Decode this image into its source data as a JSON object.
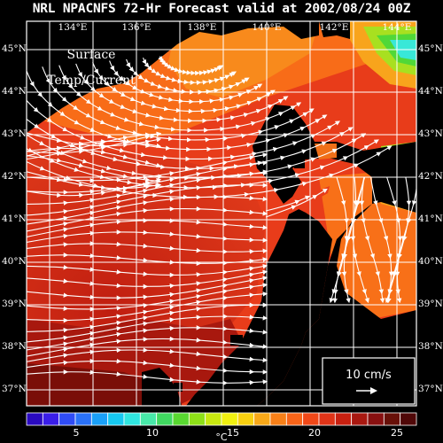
{
  "header": {
    "title": "NRL NPACNFS 72-Hr Forecast valid at 2002/08/24 00Z"
  },
  "layer_label": {
    "line1": "Surface",
    "line2": "Temp/Current"
  },
  "axes": {
    "longitude_labels": [
      "134°E",
      "136°E",
      "138°E",
      "140°E",
      "142°E",
      "144°E"
    ],
    "latitude_labels_left": [
      "45°N",
      "44°N",
      "43°N",
      "42°N",
      "41°N",
      "40°N",
      "39°N",
      "38°N",
      "37°N"
    ],
    "latitude_labels_right": [
      "45°N",
      "44°N",
      "43°N",
      "42°N",
      "41°N",
      "40°N",
      "39°N",
      "38°N",
      "37°N"
    ]
  },
  "scale_box": {
    "label": "10 cm/s",
    "arrow_icon": "arrow-right-icon"
  },
  "colorbar": {
    "tick_labels": [
      "5",
      "10",
      "15",
      "20",
      "25"
    ],
    "unit": "°C",
    "colors": [
      "#2a0ac0",
      "#3a1ee8",
      "#2f4cf5",
      "#2a72f8",
      "#1aa0f8",
      "#16c8f0",
      "#30e6e0",
      "#48e8a8",
      "#40d860",
      "#58d830",
      "#8ee018",
      "#c8e810",
      "#f0f010",
      "#f8d010",
      "#f8a818",
      "#f88018",
      "#f86418",
      "#f04818",
      "#e03418",
      "#c82010",
      "#a81810",
      "#881010",
      "#681008",
      "#500808"
    ]
  },
  "map_colors": {
    "land": "#000000",
    "sea_warm": "#d42c18",
    "sea_red": "#e63a1a",
    "sea_orange": "#f86a18",
    "sea_lightorange": "#f88c1c",
    "sea_darkred": "#8c1208",
    "sea_deepred": "#5a0a06",
    "sea_green": "#50d838",
    "sea_cyan": "#38e8d8",
    "sea_yellowgreen": "#a8e020",
    "grid": "#ffffff",
    "streamline": "#ffffff"
  }
}
